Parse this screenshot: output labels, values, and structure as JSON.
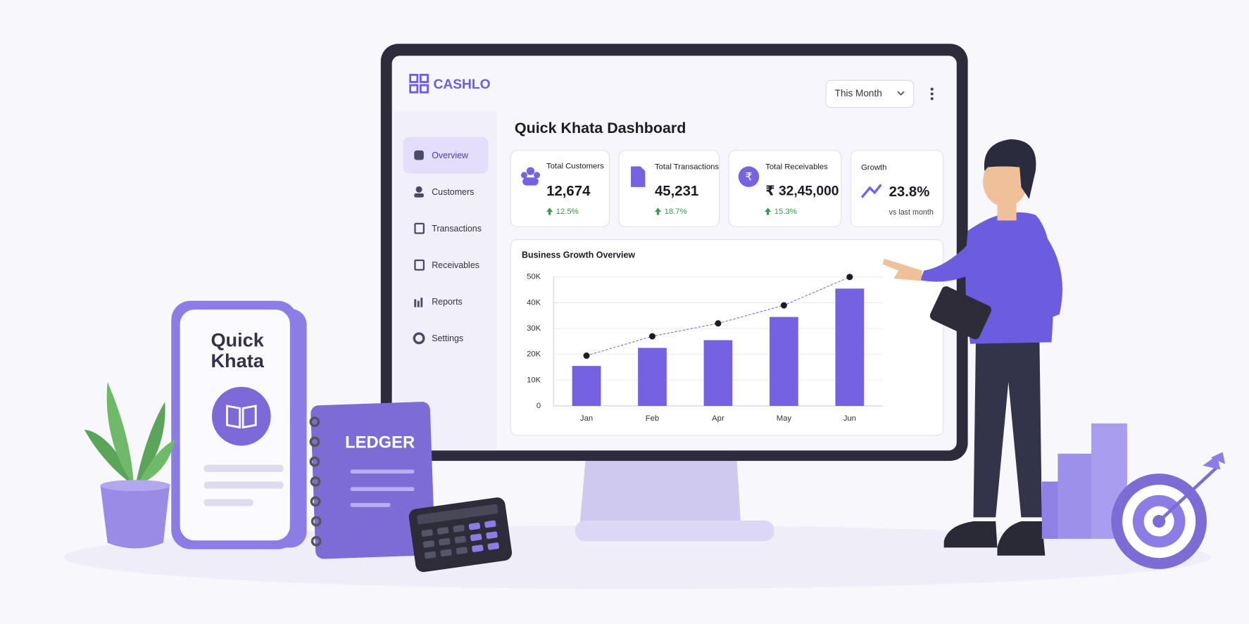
{
  "brand": "CASHLO",
  "period_filter": "This Month",
  "sidebar": [
    "Overview",
    "Customers",
    "Transactions",
    "Receivables",
    "Reports",
    "Settings"
  ],
  "dashboard_title": "Quick Khata Dashboard",
  "cards": [
    {
      "label": "Total Customers",
      "value": "12,674",
      "change": "12.5%"
    },
    {
      "label": "Total Transactions",
      "value": "45,231",
      "change": "18.7%"
    },
    {
      "label": "Total Receivables",
      "value": "₹ 32,45,000",
      "change": "15.3%"
    },
    {
      "label": "Growth",
      "value": "23.8%",
      "note": "vs last month"
    }
  ],
  "chart_data": {
    "type": "bar",
    "title": "Business Growth Overview",
    "categories": [
      "Jan",
      "Feb",
      "Apr",
      "May",
      "Jun"
    ],
    "series": [
      {
        "type": "bar",
        "color": "#7462e3",
        "values": [
          15500,
          22500,
          25500,
          34500,
          45500
        ]
      },
      {
        "type": "line",
        "color": "#7f70e0",
        "marker_color": "#1d1c26",
        "values": [
          19500,
          27000,
          32000,
          39000,
          50000
        ]
      }
    ],
    "ylim": [
      0,
      50000
    ],
    "yticks": [
      0,
      {
        "value": 10000,
        "label": "10K"
      },
      {
        "value": 20000,
        "label": "20K"
      },
      {
        "value": 30000,
        "label": "30K"
      },
      {
        "value": 40000,
        "label": "40K"
      },
      {
        "value": 50000,
        "label": "50K"
      }
    ],
    "grid": true
  },
  "illustration": {
    "phone_text": [
      "Quick",
      "Khata"
    ],
    "ledger": "LEDGER"
  }
}
